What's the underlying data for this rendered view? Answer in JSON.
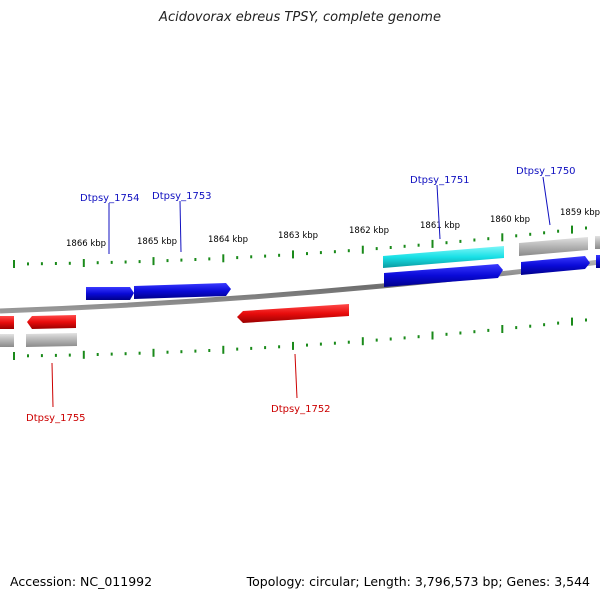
{
  "title": "Acidovorax ebreus TPSY, complete genome",
  "footer": {
    "accession": "Accession: NC_011992",
    "topology": "Topology: circular; Length: 3,796,573 bp; Genes: 3,544"
  },
  "colors": {
    "forward_gene": "#0a0ad8",
    "reverse_gene": "#e80c0c",
    "selected_gene": "#19e0e6",
    "rna_gene": "#b4b4b4",
    "backbone": "#7a7a7a",
    "tick": "#1a8a1a",
    "forward_label": "#1010c0",
    "reverse_label": "#cc0000"
  },
  "kbp_labels": [
    "1866 kbp",
    "1865 kbp",
    "1864 kbp",
    "1863 kbp",
    "1862 kbp",
    "1861 kbp",
    "1860 kbp",
    "1859 kbp"
  ],
  "gene_labels": {
    "forward": [
      "Dtpsy_1754",
      "Dtpsy_1753",
      "Dtpsy_1751",
      "Dtpsy_1750"
    ],
    "reverse": [
      "Dtpsy_1755",
      "Dtpsy_1752"
    ]
  }
}
